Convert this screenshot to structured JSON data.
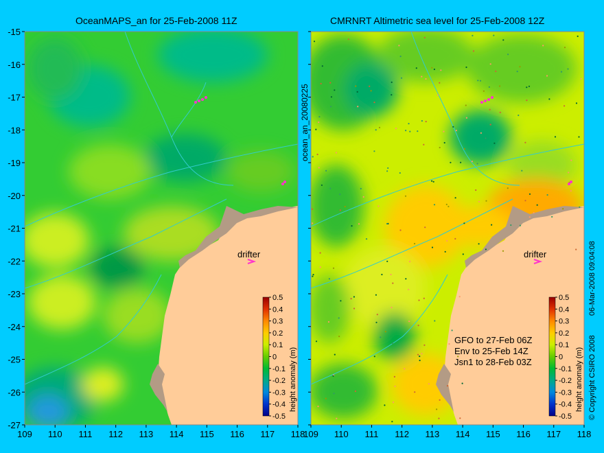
{
  "left_panel": {
    "title": "OceanMAPS_an for 25-Feb-2008 11Z",
    "drifter_label": "drifter",
    "colorbar": {
      "label": "height anomaly (m)",
      "ticks": [
        "0.5",
        "0.4",
        "0.3",
        "0.2",
        "0.1",
        "0",
        "-0.1",
        "-0.2",
        "-0.3",
        "-0.4",
        "-0.5"
      ]
    }
  },
  "right_panel": {
    "title": "CMRNRT Altimetric sea level  for 25-Feb-2008 12Z",
    "drifter_label": "drifter",
    "colorbar": {
      "label": "height anomaly (m)",
      "ticks": [
        "0.5",
        "0.4",
        "0.3",
        "0.2",
        "0.1",
        "0",
        "-0.1",
        "-0.2",
        "-0.3",
        "-0.4",
        "-0.5"
      ]
    },
    "legend_lines": [
      "GFO to 27-Feb 06Z",
      "Env to 25-Feb 14Z",
      "Jsn1 to 28-Feb 03Z"
    ]
  },
  "vertical_label": "ocean_an_20080225",
  "copyright": "© Copyright CSIRO 2008",
  "date_stamp": "06-Mar-2008 09:04:08",
  "axes": {
    "x_ticks": [
      "109",
      "110",
      "111",
      "112",
      "113",
      "114",
      "115",
      "116",
      "117",
      "118"
    ],
    "y_ticks": [
      "-15",
      "-16",
      "-17",
      "-18",
      "-19",
      "-20",
      "-21",
      "-22",
      "-23",
      "-24",
      "-25",
      "-26",
      "-27"
    ],
    "lon_range": [
      109,
      118
    ],
    "lat_range": [
      -15,
      -27
    ]
  },
  "colors": {
    "background": "#00ccff",
    "land": "#ffcc99",
    "shelf": "#b39b85",
    "drifter": "#ff33cc",
    "contour": "#33cccc"
  }
}
